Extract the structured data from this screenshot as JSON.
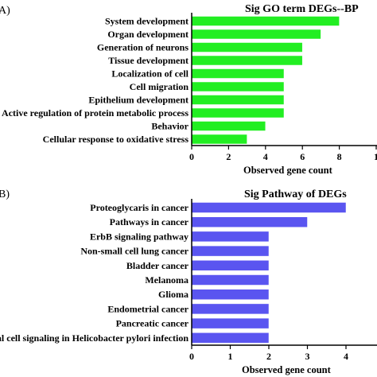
{
  "chart_data": [
    {
      "type": "bar",
      "orientation": "horizontal",
      "panel_label": "A)",
      "title": "Sig GO term DEGs--BP",
      "xlabel": "Observed gene count",
      "ylabel": "",
      "xlim": [
        0,
        10
      ],
      "xticks": [
        "0",
        "2",
        "4",
        "6",
        "8",
        "1"
      ],
      "grid": false,
      "color": "#22ee22",
      "categories": [
        "System development",
        "Organ development",
        "Generation of neurons",
        "Tissue development",
        "Localization of cell",
        "Cell migration",
        "Epithelium development",
        "Active regulation of protein metabolic process",
        "Behavior",
        "Cellular response to oxidative stress"
      ],
      "values": [
        8,
        7,
        6,
        6,
        5,
        5,
        5,
        5,
        4,
        3
      ]
    },
    {
      "type": "bar",
      "orientation": "horizontal",
      "panel_label": "B)",
      "title": "Sig Pathway of DEGs",
      "xlabel": "Observed gene count",
      "ylabel": "",
      "xlim": [
        0,
        4.3
      ],
      "xticks": [
        "0",
        "1",
        "2",
        "3",
        "4"
      ],
      "grid": false,
      "color": "#5a55f0",
      "categories": [
        "Proteoglycaris in cancer",
        "Pathways in cancer",
        "ErbB signaling pathway",
        "Non-small cell lung cancer",
        "Bladder cancer",
        "Melanoma",
        "Glioma",
        "Endometrial cancer",
        "Pancreatic cancer",
        "lial cell signaling in Helicobacter pylori infection"
      ],
      "values": [
        4,
        3,
        2,
        2,
        2,
        2,
        2,
        2,
        2,
        2
      ]
    }
  ]
}
